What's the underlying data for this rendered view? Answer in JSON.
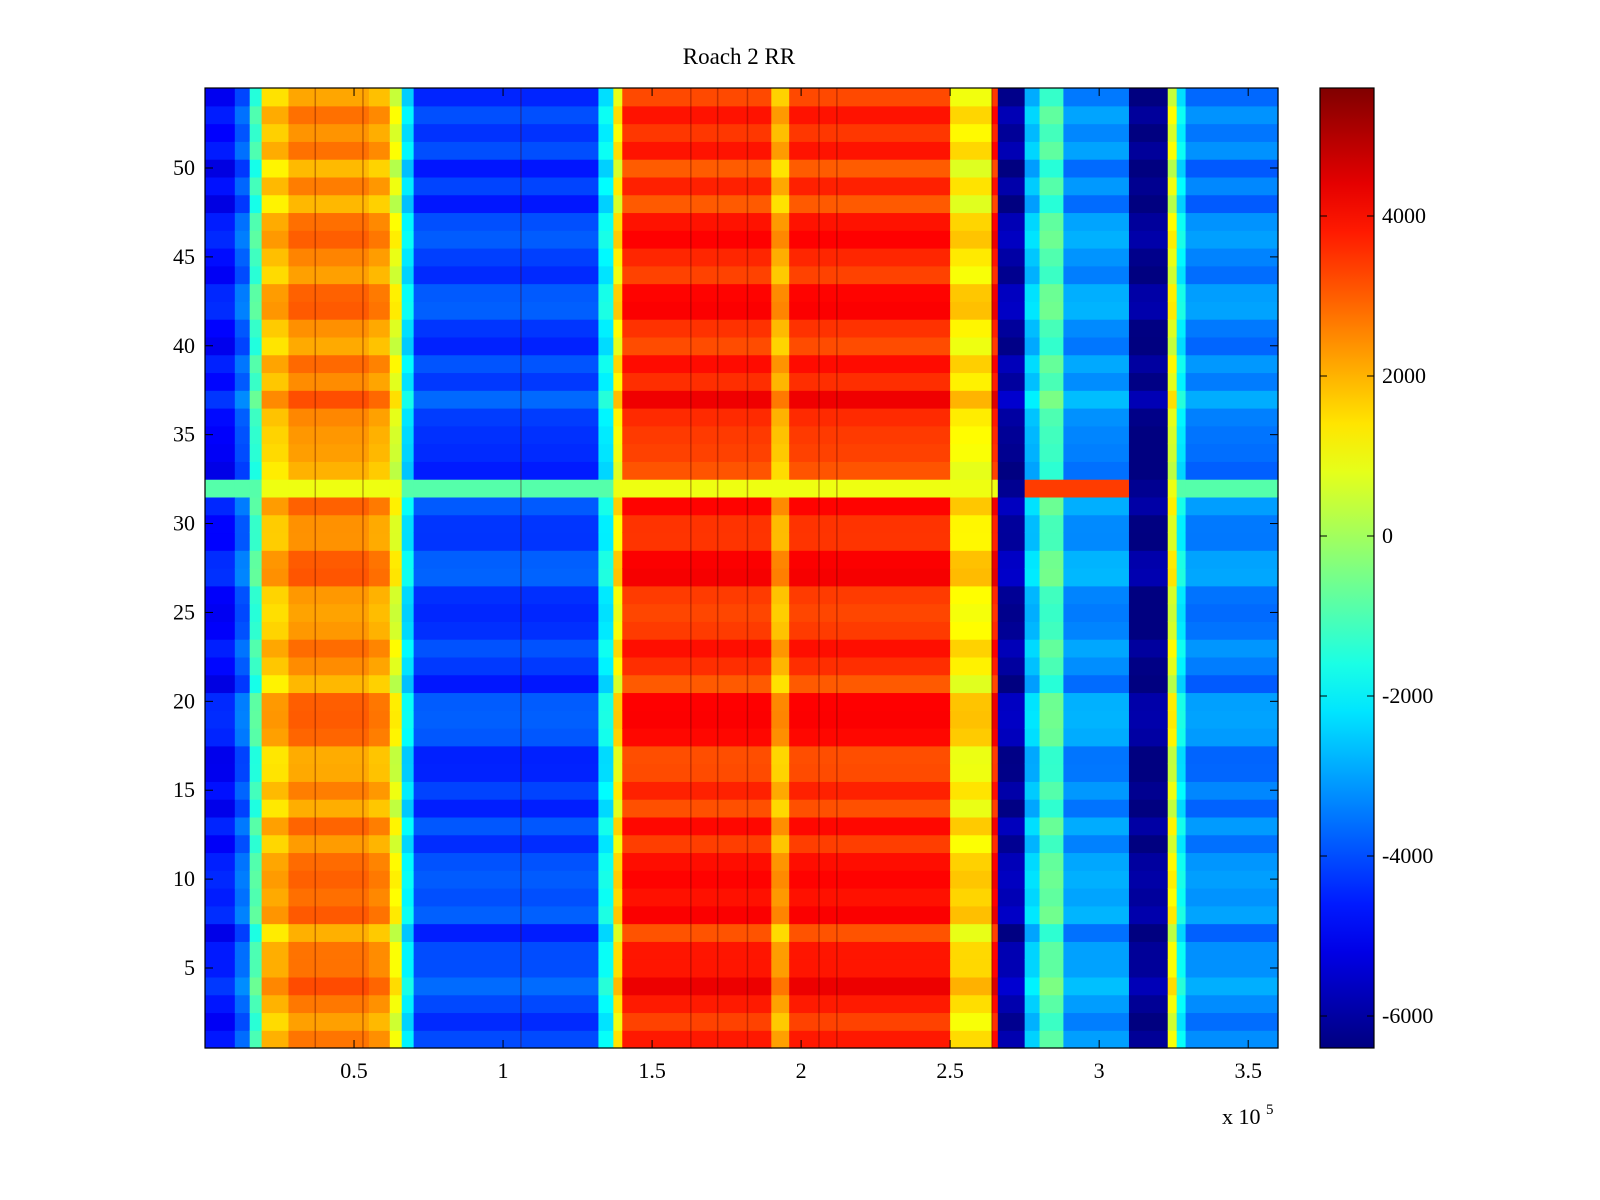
{
  "chart_data": {
    "type": "heatmap",
    "title": "Roach 2 RR",
    "xlabel": "",
    "ylabel": "",
    "x_exponent_label": "x 10",
    "x_exponent_power": "5",
    "xlim": [
      0,
      3.6
    ],
    "ylim": [
      0.5,
      54.5
    ],
    "x_ticks": [
      0.5,
      1,
      1.5,
      2,
      2.5,
      3,
      3.5
    ],
    "x_tick_labels": [
      "0.5",
      "1",
      "1.5",
      "2",
      "2.5",
      "3",
      "3.5"
    ],
    "y_ticks": [
      5,
      10,
      15,
      20,
      25,
      30,
      35,
      40,
      45,
      50
    ],
    "y_tick_labels": [
      "5",
      "10",
      "15",
      "20",
      "25",
      "30",
      "35",
      "40",
      "45",
      "50"
    ],
    "colorbar": {
      "colormap": "jet",
      "clim": [
        -6400,
        5600
      ],
      "ticks": [
        -6000,
        -4000,
        -2000,
        0,
        2000,
        4000
      ],
      "tick_labels": [
        "-6000",
        "-4000",
        "-2000",
        "0",
        "2000",
        "4000"
      ]
    },
    "column_bands": [
      {
        "x_start": 0.0,
        "x_end": 0.1,
        "value": -4800
      },
      {
        "x_start": 0.1,
        "x_end": 0.15,
        "value": -3800
      },
      {
        "x_start": 0.15,
        "x_end": 0.19,
        "value": -1200
      },
      {
        "x_start": 0.19,
        "x_end": 0.28,
        "value": 1800
      },
      {
        "x_start": 0.28,
        "x_end": 0.55,
        "value": 2500
      },
      {
        "x_start": 0.55,
        "x_end": 0.62,
        "value": 2200
      },
      {
        "x_start": 0.62,
        "x_end": 0.66,
        "value": 800
      },
      {
        "x_start": 0.66,
        "x_end": 0.7,
        "value": -2200
      },
      {
        "x_start": 0.7,
        "x_end": 1.32,
        "value": -4200
      },
      {
        "x_start": 1.32,
        "x_end": 1.37,
        "value": -2000
      },
      {
        "x_start": 1.37,
        "x_end": 1.4,
        "value": 1200
      },
      {
        "x_start": 1.4,
        "x_end": 1.9,
        "value": 3600
      },
      {
        "x_start": 1.9,
        "x_end": 1.96,
        "value": 2000
      },
      {
        "x_start": 1.96,
        "x_end": 2.5,
        "value": 3600
      },
      {
        "x_start": 2.5,
        "x_end": 2.64,
        "value": 1300
      },
      {
        "x_start": 2.64,
        "x_end": 2.66,
        "value": 3800
      },
      {
        "x_start": 2.66,
        "x_end": 2.75,
        "value": -6000
      },
      {
        "x_start": 2.75,
        "x_end": 2.8,
        "value": -2600
      },
      {
        "x_start": 2.8,
        "x_end": 2.88,
        "value": -1000
      },
      {
        "x_start": 2.88,
        "x_end": 3.1,
        "value": -3200
      },
      {
        "x_start": 3.1,
        "x_end": 3.23,
        "value": -6300
      },
      {
        "x_start": 3.23,
        "x_end": 3.26,
        "value": 800
      },
      {
        "x_start": 3.26,
        "x_end": 3.29,
        "value": -2000
      },
      {
        "x_start": 3.29,
        "x_end": 3.6,
        "value": -3400
      }
    ],
    "row_anomaly": {
      "row": 32,
      "values_note": "transition row with mixed values"
    }
  }
}
